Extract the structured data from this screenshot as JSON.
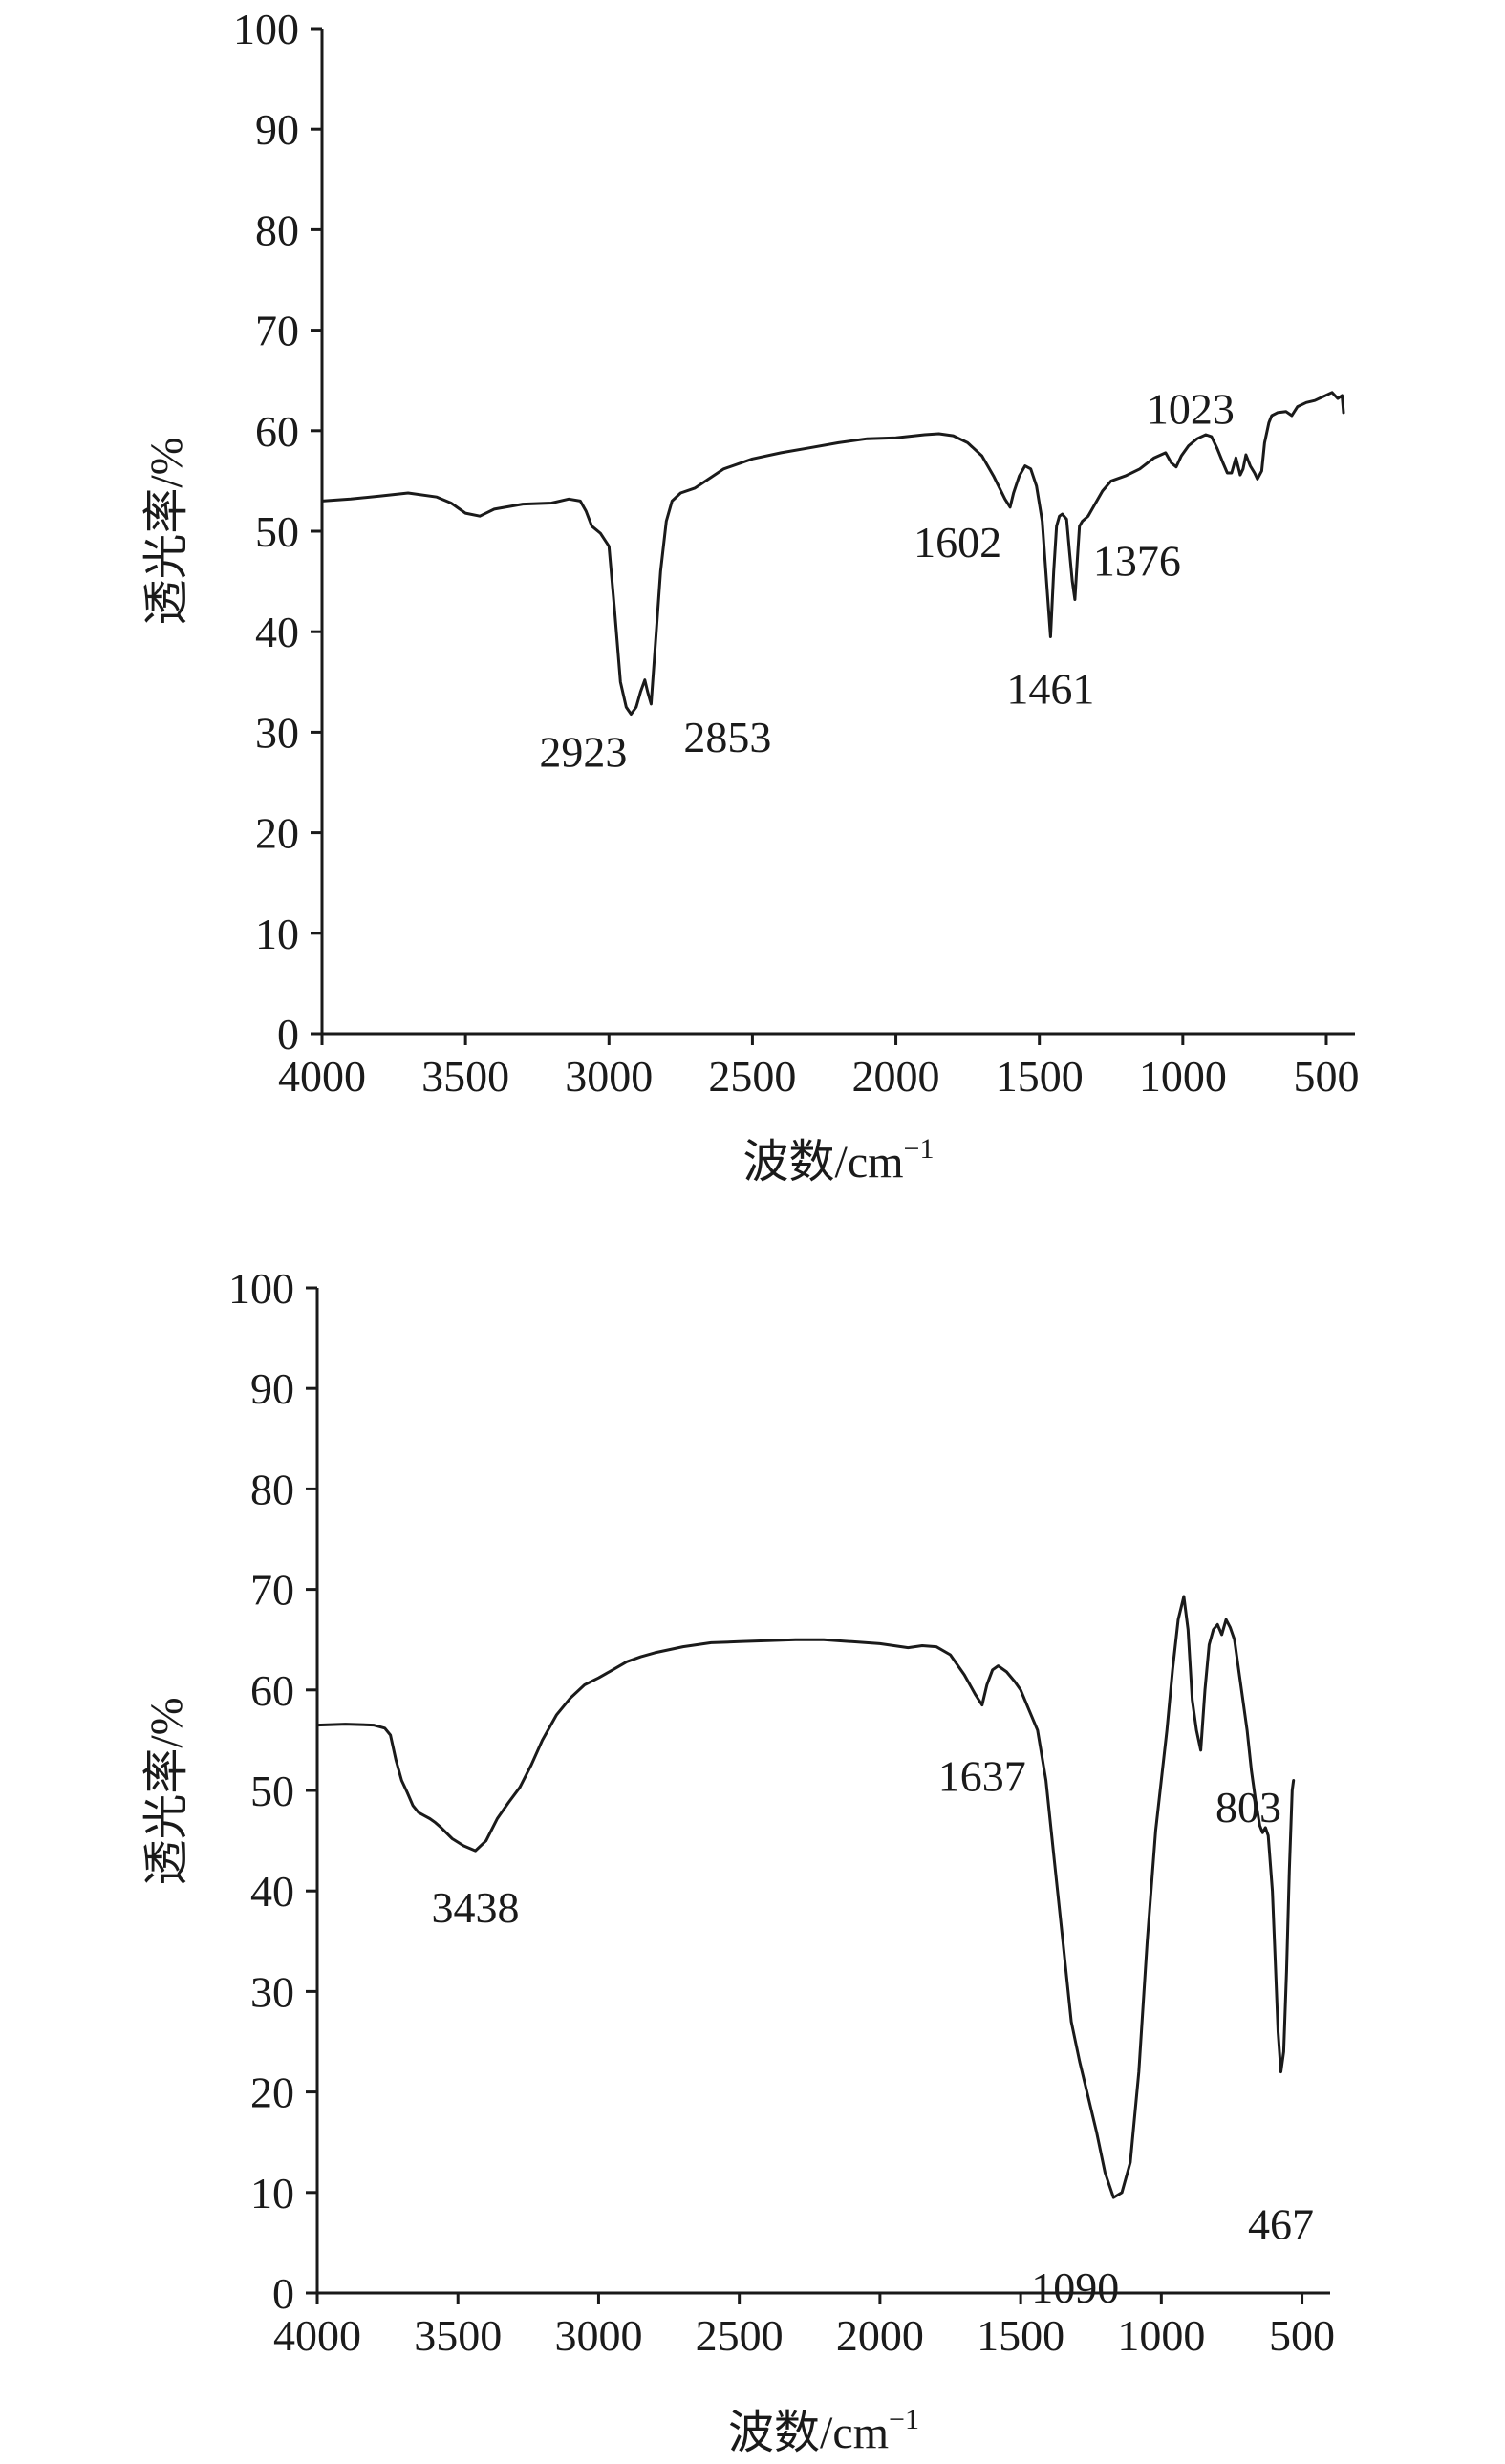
{
  "chart_data": [
    {
      "type": "line",
      "title": "",
      "xlabel": "波数/cm",
      "xlabel_sup": "−1",
      "ylabel": "透光率/%",
      "xlim": [
        4000,
        400
      ],
      "ylim": [
        0,
        100
      ],
      "x_reversed": true,
      "x_ticks": [
        4000,
        3500,
        3000,
        2500,
        2000,
        1500,
        1000,
        500
      ],
      "y_ticks": [
        0,
        10,
        20,
        30,
        40,
        50,
        60,
        70,
        80,
        90,
        100
      ],
      "grid": false,
      "series": [
        {
          "points": [
            [
              4000,
              53
            ],
            [
              3900,
              53.2
            ],
            [
              3800,
              53.5
            ],
            [
              3700,
              53.8
            ],
            [
              3600,
              53.4
            ],
            [
              3550,
              52.8
            ],
            [
              3500,
              51.8
            ],
            [
              3450,
              51.5
            ],
            [
              3400,
              52.2
            ],
            [
              3300,
              52.7
            ],
            [
              3200,
              52.8
            ],
            [
              3140,
              53.2
            ],
            [
              3100,
              53
            ],
            [
              3080,
              52
            ],
            [
              3060,
              50.5
            ],
            [
              3030,
              49.8
            ],
            [
              3000,
              48.5
            ],
            [
              2980,
              42
            ],
            [
              2960,
              35
            ],
            [
              2940,
              32.5
            ],
            [
              2923,
              31.8
            ],
            [
              2905,
              32.5
            ],
            [
              2890,
              34
            ],
            [
              2875,
              35.2
            ],
            [
              2865,
              34
            ],
            [
              2853,
              32.8
            ],
            [
              2840,
              38
            ],
            [
              2820,
              46
            ],
            [
              2800,
              51
            ],
            [
              2780,
              53
            ],
            [
              2750,
              53.8
            ],
            [
              2700,
              54.3
            ],
            [
              2600,
              56.2
            ],
            [
              2500,
              57.2
            ],
            [
              2400,
              57.8
            ],
            [
              2300,
              58.3
            ],
            [
              2200,
              58.8
            ],
            [
              2100,
              59.2
            ],
            [
              2000,
              59.3
            ],
            [
              1900,
              59.6
            ],
            [
              1850,
              59.7
            ],
            [
              1800,
              59.5
            ],
            [
              1750,
              58.8
            ],
            [
              1700,
              57.5
            ],
            [
              1660,
              55.5
            ],
            [
              1620,
              53.2
            ],
            [
              1602,
              52.4
            ],
            [
              1590,
              53.8
            ],
            [
              1570,
              55.5
            ],
            [
              1550,
              56.5
            ],
            [
              1530,
              56.2
            ],
            [
              1510,
              54.5
            ],
            [
              1490,
              51
            ],
            [
              1475,
              45
            ],
            [
              1461,
              39.5
            ],
            [
              1450,
              46
            ],
            [
              1440,
              50.5
            ],
            [
              1430,
              51.5
            ],
            [
              1420,
              51.7
            ],
            [
              1405,
              51.2
            ],
            [
              1395,
              48
            ],
            [
              1385,
              45
            ],
            [
              1376,
              43.2
            ],
            [
              1368,
              47
            ],
            [
              1360,
              50.5
            ],
            [
              1350,
              51
            ],
            [
              1330,
              51.5
            ],
            [
              1310,
              52.5
            ],
            [
              1280,
              54
            ],
            [
              1250,
              55
            ],
            [
              1200,
              55.5
            ],
            [
              1150,
              56.2
            ],
            [
              1100,
              57.3
            ],
            [
              1060,
              57.8
            ],
            [
              1040,
              56.8
            ],
            [
              1023,
              56.4
            ],
            [
              1005,
              57.5
            ],
            [
              980,
              58.5
            ],
            [
              950,
              59.2
            ],
            [
              920,
              59.6
            ],
            [
              900,
              59.4
            ],
            [
              880,
              58.2
            ],
            [
              860,
              56.8
            ],
            [
              845,
              55.8
            ],
            [
              830,
              55.8
            ],
            [
              815,
              57.3
            ],
            [
              800,
              55.6
            ],
            [
              790,
              56.2
            ],
            [
              780,
              57.6
            ],
            [
              765,
              56.5
            ],
            [
              750,
              55.8
            ],
            [
              740,
              55.2
            ],
            [
              725,
              56
            ],
            [
              715,
              58.8
            ],
            [
              700,
              60.8
            ],
            [
              690,
              61.5
            ],
            [
              670,
              61.8
            ],
            [
              640,
              61.9
            ],
            [
              620,
              61.5
            ],
            [
              600,
              62.4
            ],
            [
              570,
              62.8
            ],
            [
              540,
              63
            ],
            [
              510,
              63.4
            ],
            [
              480,
              63.8
            ],
            [
              460,
              63.2
            ],
            [
              445,
              63.5
            ],
            [
              440,
              61.8
            ]
          ]
        }
      ],
      "annotations": [
        {
          "text": "2923",
          "x": 2923,
          "y": 31.8
        },
        {
          "text": "2853",
          "x": 2853,
          "y": 32.8
        },
        {
          "text": "1602",
          "x": 1602,
          "y": 52.4
        },
        {
          "text": "1461",
          "x": 1461,
          "y": 39.5
        },
        {
          "text": "1376",
          "x": 1376,
          "y": 43.2
        },
        {
          "text": "1023",
          "x": 1023,
          "y": 56.4
        }
      ]
    },
    {
      "type": "line",
      "title": "",
      "xlabel": "波数/cm",
      "xlabel_sup": "−1",
      "ylabel": "透光率/%",
      "xlim": [
        4000,
        400
      ],
      "ylim": [
        0,
        100
      ],
      "x_reversed": true,
      "x_ticks": [
        4000,
        3500,
        3000,
        2500,
        2000,
        1500,
        1000,
        500
      ],
      "y_ticks": [
        0,
        10,
        20,
        30,
        40,
        50,
        60,
        70,
        80,
        90,
        100
      ],
      "grid": false,
      "series": [
        {
          "points": [
            [
              4000,
              56.5
            ],
            [
              3900,
              56.6
            ],
            [
              3800,
              56.5
            ],
            [
              3760,
              56.2
            ],
            [
              3740,
              55.5
            ],
            [
              3720,
              53
            ],
            [
              3700,
              51
            ],
            [
              3680,
              49.8
            ],
            [
              3660,
              48.5
            ],
            [
              3640,
              47.8
            ],
            [
              3620,
              47.5
            ],
            [
              3600,
              47.2
            ],
            [
              3580,
              46.8
            ],
            [
              3560,
              46.3
            ],
            [
              3520,
              45.2
            ],
            [
              3480,
              44.5
            ],
            [
              3438,
              44
            ],
            [
              3400,
              45
            ],
            [
              3360,
              47.2
            ],
            [
              3320,
              48.8
            ],
            [
              3280,
              50.3
            ],
            [
              3240,
              52.5
            ],
            [
              3200,
              55
            ],
            [
              3150,
              57.5
            ],
            [
              3100,
              59.2
            ],
            [
              3050,
              60.5
            ],
            [
              3000,
              61.2
            ],
            [
              2950,
              62
            ],
            [
              2900,
              62.8
            ],
            [
              2850,
              63.3
            ],
            [
              2800,
              63.7
            ],
            [
              2700,
              64.3
            ],
            [
              2600,
              64.7
            ],
            [
              2500,
              64.8
            ],
            [
              2400,
              64.9
            ],
            [
              2300,
              65
            ],
            [
              2200,
              65
            ],
            [
              2100,
              64.8
            ],
            [
              2000,
              64.6
            ],
            [
              1900,
              64.2
            ],
            [
              1850,
              64.4
            ],
            [
              1800,
              64.3
            ],
            [
              1750,
              63.5
            ],
            [
              1700,
              61.5
            ],
            [
              1660,
              59.5
            ],
            [
              1637,
              58.5
            ],
            [
              1620,
              60.5
            ],
            [
              1600,
              62
            ],
            [
              1580,
              62.4
            ],
            [
              1550,
              61.8
            ],
            [
              1520,
              60.8
            ],
            [
              1500,
              60
            ],
            [
              1470,
              58
            ],
            [
              1440,
              56
            ],
            [
              1410,
              51
            ],
            [
              1380,
              43
            ],
            [
              1350,
              35
            ],
            [
              1320,
              27
            ],
            [
              1290,
              23
            ],
            [
              1260,
              19.5
            ],
            [
              1230,
              16
            ],
            [
              1200,
              12
            ],
            [
              1170,
              9.5
            ],
            [
              1140,
              10
            ],
            [
              1110,
              13
            ],
            [
              1080,
              22
            ],
            [
              1050,
              35
            ],
            [
              1020,
              46
            ],
            [
              1000,
              51
            ],
            [
              980,
              56
            ],
            [
              960,
              62
            ],
            [
              940,
              67
            ],
            [
              920,
              69.3
            ],
            [
              905,
              66
            ],
            [
              890,
              59
            ],
            [
              875,
              56
            ],
            [
              860,
              54
            ],
            [
              845,
              60
            ],
            [
              830,
              64.5
            ],
            [
              815,
              66
            ],
            [
              800,
              66.5
            ],
            [
              785,
              65.5
            ],
            [
              770,
              67
            ],
            [
              755,
              66.2
            ],
            [
              740,
              65
            ],
            [
              725,
              62
            ],
            [
              710,
              59
            ],
            [
              695,
              56
            ],
            [
              680,
              52
            ],
            [
              665,
              49
            ],
            [
              650,
              46.5
            ],
            [
              640,
              45.8
            ],
            [
              630,
              46.3
            ],
            [
              620,
              45.5
            ],
            [
              605,
              40
            ],
            [
              595,
              33
            ],
            [
              585,
              26
            ],
            [
              575,
              22
            ],
            [
              565,
              24
            ],
            [
              555,
              32
            ],
            [
              545,
              42
            ],
            [
              535,
              50
            ],
            [
              530,
              51
            ]
          ]
        }
      ],
      "annotations": [
        {
          "text": "3438",
          "x": 3438,
          "y": 44
        },
        {
          "text": "1637",
          "x": 1637,
          "y": 58.5
        },
        {
          "text": "1090",
          "x": 1170,
          "y": 9.5
        },
        {
          "text": "803",
          "x": 860,
          "y": 54
        },
        {
          "text": "467",
          "x": 575,
          "y": 22
        }
      ]
    }
  ]
}
